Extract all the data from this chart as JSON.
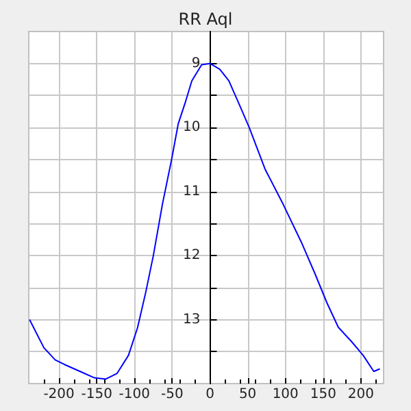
{
  "chart_data": {
    "type": "line",
    "title": "RR Aql",
    "x": [
      -239,
      -220,
      -205,
      -193,
      -172,
      -153,
      -138,
      -123,
      -108,
      -96,
      -85,
      -75,
      -63,
      -51,
      -42,
      -33,
      -24,
      -11,
      0,
      13,
      25,
      37,
      52,
      73,
      97,
      121,
      139,
      155,
      170,
      188,
      203,
      217,
      225
    ],
    "series": [
      {
        "color": "#0000ff",
        "values": [
          13.0,
          13.44,
          13.63,
          13.7,
          13.81,
          13.91,
          13.93,
          13.84,
          13.56,
          13.13,
          12.57,
          12.0,
          11.2,
          10.51,
          9.94,
          9.62,
          9.27,
          9.02,
          9.0,
          9.09,
          9.27,
          9.59,
          10.0,
          10.65,
          11.2,
          11.79,
          12.28,
          12.74,
          13.12,
          13.35,
          13.56,
          13.81,
          13.77
        ]
      }
    ],
    "xlim": [
      -240,
      230
    ],
    "xticks": [
      -200,
      -150,
      -100,
      -50,
      0,
      50,
      100,
      150,
      200
    ],
    "ylim": [
      14,
      8.5
    ],
    "yticks": [
      9,
      {
        "value": 9.5,
        "label": null
      },
      10,
      {
        "value": 10.5,
        "label": null
      },
      11,
      {
        "value": 11.5,
        "label": null
      },
      12,
      {
        "value": 12.5,
        "label": null
      },
      13,
      {
        "value": 13.5,
        "label": null
      }
    ],
    "grid": true,
    "marker": "none",
    "line_style": "solid"
  }
}
